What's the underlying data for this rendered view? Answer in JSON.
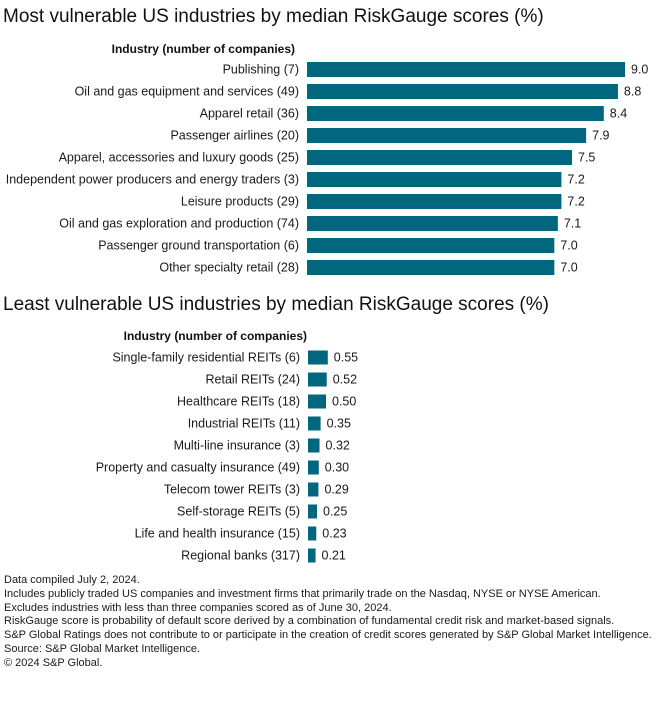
{
  "chart_data": [
    {
      "type": "bar",
      "orientation": "horizontal",
      "title": "Most vulnerable US industries by median RiskGauge scores (%)",
      "category_header": "Industry (number of companies)",
      "categories": [
        "Publishing (7)",
        "Oil and gas equipment and services (49)",
        "Apparel retail (36)",
        "Passenger airlines (20)",
        "Apparel, accessories and luxury goods (25)",
        "Independent power producers and energy traders (3)",
        "Leisure products (29)",
        "Oil and gas exploration and production (74)",
        "Passenger ground transportation (6)",
        "Other specialty retail (28)"
      ],
      "values": [
        9.0,
        8.8,
        8.4,
        7.9,
        7.5,
        7.2,
        7.2,
        7.1,
        7.0,
        7.0
      ],
      "value_labels": [
        "9.0",
        "8.8",
        "8.4",
        "7.9",
        "7.5",
        "7.2",
        "7.2",
        "7.1",
        "7.0",
        "7.0"
      ],
      "xlim": [
        0,
        9.0
      ],
      "bar_color": "#00677f"
    },
    {
      "type": "bar",
      "orientation": "horizontal",
      "title": "Least vulnerable US industries by median RiskGauge scores (%)",
      "category_header": "Industry (number of companies)",
      "categories": [
        "Single-family residential REITs (6)",
        "Retail REITs (24)",
        "Healthcare REITs (18)",
        "Industrial REITs (11)",
        "Multi-line insurance (3)",
        "Property and casualty insurance (49)",
        "Telecom tower REITs (3)",
        "Self-storage REITs (5)",
        "Life and health insurance (15)",
        "Regional banks (317)"
      ],
      "values": [
        0.55,
        0.52,
        0.5,
        0.35,
        0.32,
        0.3,
        0.29,
        0.25,
        0.23,
        0.21
      ],
      "value_labels": [
        "0.55",
        "0.52",
        "0.50",
        "0.35",
        "0.32",
        "0.30",
        "0.29",
        "0.25",
        "0.23",
        "0.21"
      ],
      "xlim": [
        0,
        9.0
      ],
      "bar_color": "#00677f"
    }
  ],
  "notes": [
    "Data compiled July 2, 2024.",
    "Includes publicly traded US companies and investment firms that primarily trade on the Nasdaq, NYSE or NYSE American.",
    "Excludes industries with less than three companies scored as of June 30, 2024.",
    "RiskGauge score is probability of default score derived by a combination of fundamental credit risk and market-based signals.",
    "S&P Global Ratings does not contribute to or participate in the creation of credit scores generated by S&P Global Market Intelligence.",
    "Source: S&P Global Market Intelligence.",
    "© 2024 S&P Global."
  ]
}
